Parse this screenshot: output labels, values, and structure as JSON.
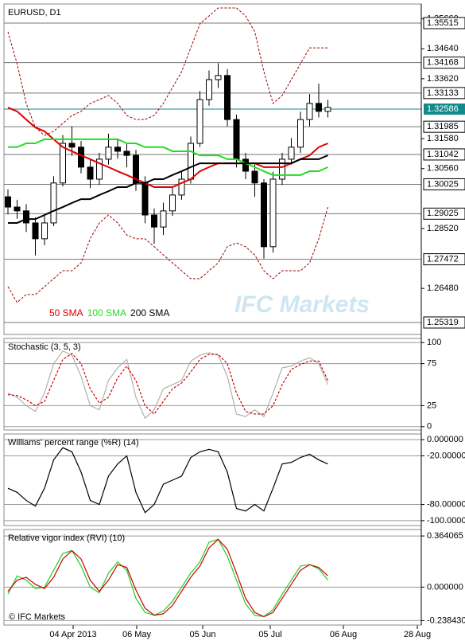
{
  "chart_data": [
    {
      "type": "candlestick",
      "title": "EURUSD, D1",
      "open": [
        1.296,
        1.2925,
        1.2912,
        1.2871,
        1.2817,
        1.2871,
        1.3007,
        1.3142,
        1.3129,
        1.3061,
        1.302,
        1.3088,
        1.3129,
        1.3115,
        1.3101,
        1.3007,
        1.2898,
        1.2857,
        1.2912,
        1.2966,
        1.302,
        1.3142,
        1.3291,
        1.3359,
        1.3373,
        1.3223,
        1.3088,
        1.3047,
        1.3007,
        1.279,
        1.302,
        1.3088,
        1.3129,
        1.3223,
        1.3278,
        1.3251
      ],
      "high": [
        1.2985,
        1.295,
        1.2935,
        1.289,
        1.29,
        1.303,
        1.317,
        1.32,
        1.315,
        1.3085,
        1.311,
        1.3175,
        1.3155,
        1.314,
        1.312,
        1.303,
        1.292,
        1.294,
        1.299,
        1.305,
        1.3165,
        1.332,
        1.339,
        1.3415,
        1.3395,
        1.324,
        1.311,
        1.307,
        1.302,
        1.3045,
        1.311,
        1.316,
        1.325,
        1.331,
        1.3345,
        1.329
      ],
      "low": [
        1.29,
        1.2885,
        1.284,
        1.276,
        1.2795,
        1.286,
        1.2995,
        1.31,
        1.304,
        1.299,
        1.3,
        1.307,
        1.309,
        1.306,
        1.298,
        1.287,
        1.28,
        1.283,
        1.2895,
        1.295,
        1.3005,
        1.313,
        1.327,
        1.333,
        1.32,
        1.306,
        1.302,
        1.296,
        1.275,
        1.277,
        1.3,
        1.307,
        1.311,
        1.32,
        1.323,
        1.323
      ],
      "close": [
        1.2925,
        1.2912,
        1.2871,
        1.2817,
        1.2871,
        1.3007,
        1.3142,
        1.3129,
        1.3061,
        1.302,
        1.3088,
        1.3129,
        1.3115,
        1.3101,
        1.3007,
        1.2898,
        1.2857,
        1.2912,
        1.2966,
        1.302,
        1.3142,
        1.3291,
        1.3359,
        1.3373,
        1.3223,
        1.3088,
        1.3047,
        1.3007,
        1.279,
        1.302,
        1.3088,
        1.3129,
        1.3223,
        1.3278,
        1.3251,
        1.3264
      ],
      "series": [
        {
          "name": "50 SMA",
          "color": "#e00000",
          "values": [
            1.3264,
            1.3251,
            1.3223,
            1.3196,
            1.3183,
            1.3156,
            1.3129,
            1.3115,
            1.3101,
            1.3088,
            1.3074,
            1.3061,
            1.3047,
            1.3034,
            1.302,
            1.3007,
            1.2993,
            1.2993,
            1.2993,
            1.3007,
            1.302,
            1.3047,
            1.3061,
            1.3074,
            1.3074,
            1.3074,
            1.3074,
            1.3074,
            1.3061,
            1.3061,
            1.3061,
            1.3074,
            1.3088,
            1.3101,
            1.3129,
            1.3142
          ]
        },
        {
          "name": "100 SMA",
          "color": "#22dd22",
          "values": [
            1.3129,
            1.3129,
            1.3142,
            1.3142,
            1.3156,
            1.3156,
            1.3156,
            1.3156,
            1.3156,
            1.3156,
            1.3156,
            1.3156,
            1.3156,
            1.3142,
            1.3142,
            1.3129,
            1.3129,
            1.3129,
            1.3115,
            1.3115,
            1.3115,
            1.3101,
            1.3101,
            1.3101,
            1.3088,
            1.3088,
            1.3074,
            1.3061,
            1.3047,
            1.3034,
            1.3034,
            1.3034,
            1.3034,
            1.3047,
            1.3047,
            1.3061
          ]
        },
        {
          "name": "200 SMA",
          "color": "#000000",
          "values": [
            1.2871,
            1.2871,
            1.2884,
            1.2884,
            1.2898,
            1.2912,
            1.2925,
            1.2939,
            1.2952,
            1.2952,
            1.2966,
            1.2979,
            1.2993,
            1.2993,
            1.3007,
            1.3007,
            1.302,
            1.302,
            1.3034,
            1.3047,
            1.3061,
            1.3074,
            1.3074,
            1.3074,
            1.3074,
            1.3074,
            1.3074,
            1.3074,
            1.3074,
            1.3074,
            1.3074,
            1.3074,
            1.3088,
            1.3088,
            1.3088,
            1.3101
          ]
        }
      ],
      "bands": {
        "color": "#990000",
        "upper": [
          1.3522,
          1.3413,
          1.3278,
          1.3196,
          1.3169,
          1.3183,
          1.321,
          1.3237,
          1.3251,
          1.3278,
          1.3291,
          1.3305,
          1.3278,
          1.3237,
          1.3223,
          1.3223,
          1.3237,
          1.3278,
          1.3332,
          1.3386,
          1.3467,
          1.3549,
          1.3576,
          1.3603,
          1.3603,
          1.3603,
          1.3576,
          1.3522,
          1.3386,
          1.3278,
          1.3305,
          1.3359,
          1.3413,
          1.3467,
          1.3467,
          1.3467
        ],
        "lower": [
          1.2654,
          1.26,
          1.2627,
          1.2627,
          1.2654,
          1.2681,
          1.2708,
          1.2708,
          1.2735,
          1.2817,
          1.2871,
          1.2898,
          1.2871,
          1.283,
          1.2817,
          1.2817,
          1.279,
          1.2762,
          1.2735,
          1.2708,
          1.2681,
          1.2681,
          1.2708,
          1.2735,
          1.279,
          1.2803,
          1.279,
          1.2762,
          1.2708,
          1.2681,
          1.2708,
          1.2708,
          1.2708,
          1.2735,
          1.2817,
          1.2925
        ]
      },
      "ylim": [
        1.24912,
        1.36166
      ],
      "yticks": [
        {
          "value": 1.3566,
          "label": "1.35660"
        },
        {
          "value": 1.3464,
          "label": "1.34640"
        },
        {
          "value": 1.3362,
          "label": "1.33620"
        },
        {
          "value": 1.3158,
          "label": "1.31580"
        },
        {
          "value": 1.3056,
          "label": "1.30560"
        },
        {
          "value": 1.2852,
          "label": "1.28520"
        },
        {
          "value": 1.2648,
          "label": "1.26480"
        }
      ],
      "levels": [
        1.35515,
        1.34168,
        1.33133,
        1.31985,
        1.31042,
        1.30025,
        1.29025,
        1.27472,
        1.25319
      ],
      "last_price": {
        "value": 1.32586,
        "color": "#138a8a"
      },
      "grid": false,
      "legend": "bottom-left",
      "watermark": "IFC Markets",
      "x_tick_labels": [
        "04 Apr 2013",
        "06 May",
        "05 Jun",
        "05 Jul",
        "06 Aug",
        "28 Aug"
      ]
    },
    {
      "type": "line",
      "title": "Stochastic (3, 5, 3)",
      "series": [
        {
          "color": "#b0b0b0",
          "dashed": false,
          "values": [
            40,
            35,
            25,
            18,
            40,
            75,
            90,
            85,
            60,
            25,
            20,
            55,
            70,
            80,
            35,
            10,
            20,
            45,
            50,
            55,
            78,
            85,
            88,
            85,
            60,
            15,
            12,
            20,
            12,
            40,
            70,
            72,
            78,
            82,
            75,
            50
          ]
        },
        {
          "color": "#cc0000",
          "dashed": true,
          "values": [
            38,
            37,
            32,
            25,
            30,
            55,
            80,
            87,
            75,
            45,
            28,
            35,
            58,
            72,
            55,
            25,
            15,
            30,
            45,
            52,
            65,
            80,
            86,
            86,
            75,
            40,
            18,
            15,
            15,
            25,
            50,
            68,
            74,
            78,
            78,
            55
          ]
        }
      ],
      "ylim": [
        -4,
        105
      ],
      "yticks": [
        0,
        25,
        75,
        100
      ],
      "grid": true
    },
    {
      "type": "line",
      "title": "Williams' percent range (%R) (14)",
      "series": [
        {
          "color": "#000000",
          "dashed": false,
          "values": [
            -60,
            -65,
            -75,
            -82,
            -60,
            -25,
            -10,
            -15,
            -40,
            -75,
            -80,
            -45,
            -30,
            -20,
            -65,
            -90,
            -80,
            -55,
            -50,
            -45,
            -22,
            -15,
            -12,
            -15,
            -40,
            -85,
            -88,
            -80,
            -88,
            -60,
            -30,
            -28,
            -22,
            -18,
            -25,
            -30
          ]
        }
      ],
      "ylim": [
        -106,
        7
      ],
      "yticks": [
        {
          "value": 0,
          "label": "0.000000"
        },
        {
          "value": -20,
          "label": "-20.00000"
        },
        {
          "value": -80,
          "label": "-80.00000"
        },
        {
          "value": -100,
          "label": "-100.00000"
        }
      ],
      "grid": true
    },
    {
      "type": "line",
      "title": "Relative vigor index (RVI) (10)",
      "series": [
        {
          "color": "#22cc22",
          "dashed": false,
          "values": [
            -0.05,
            0.08,
            0.05,
            -0.01,
            0.0,
            0.12,
            0.24,
            0.26,
            0.15,
            0.0,
            -0.04,
            0.1,
            0.18,
            0.12,
            -0.08,
            -0.18,
            -0.2,
            -0.17,
            -0.1,
            0.0,
            0.1,
            0.18,
            0.32,
            0.34,
            0.22,
            0.05,
            -0.12,
            -0.2,
            -0.21,
            -0.16,
            -0.05,
            0.05,
            0.15,
            0.16,
            0.13,
            0.05
          ]
        },
        {
          "color": "#cc0000",
          "dashed": false,
          "values": [
            -0.03,
            0.05,
            0.07,
            0.02,
            -0.01,
            0.07,
            0.2,
            0.26,
            0.2,
            0.05,
            -0.03,
            0.05,
            0.16,
            0.14,
            -0.02,
            -0.15,
            -0.2,
            -0.19,
            -0.13,
            -0.03,
            0.07,
            0.15,
            0.28,
            0.34,
            0.27,
            0.1,
            -0.08,
            -0.18,
            -0.21,
            -0.18,
            -0.08,
            0.02,
            0.12,
            0.16,
            0.14,
            0.08
          ]
        }
      ],
      "ylim": [
        -0.27,
        0.41
      ],
      "yticks": [
        0.364065,
        {
          "value": 0,
          "label": "0.000000"
        },
        {
          "value": -0.23843,
          "label": "-0.238430"
        }
      ],
      "grid": true,
      "annotation": "© IFC Markets"
    }
  ]
}
